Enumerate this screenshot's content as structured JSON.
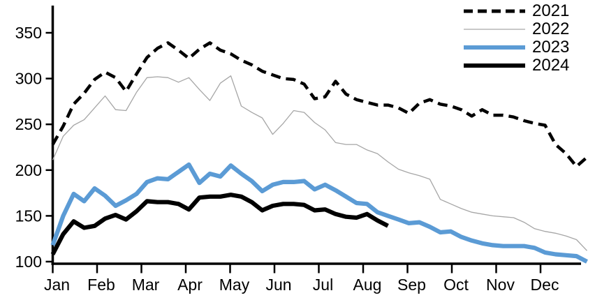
{
  "chart_data": {
    "type": "line",
    "title": "",
    "x_axis": {
      "tick_labels": [
        "Jan",
        "Feb",
        "Mar",
        "Apr",
        "May",
        "Jun",
        "Jul",
        "Aug",
        "Sep",
        "Oct",
        "Nov",
        "Dec"
      ],
      "unit": "weekly points across one year"
    },
    "y_axis": {
      "ticks": [
        100,
        150,
        200,
        250,
        300,
        350
      ],
      "range": [
        100,
        362
      ]
    },
    "legend": {
      "position": "top-right"
    },
    "series": [
      {
        "name": "2021",
        "color": "#000000",
        "dash": true,
        "thick": true,
        "values": [
          228,
          248,
          272,
          284,
          299,
          307,
          301,
          286,
          305,
          323,
          333,
          339,
          331,
          322,
          332,
          339,
          331,
          327,
          320,
          315,
          308,
          304,
          300,
          299,
          294,
          278,
          280,
          297,
          283,
          277,
          274,
          271,
          271,
          268,
          262,
          273,
          277,
          272,
          270,
          266,
          259,
          266,
          260,
          260,
          258,
          254,
          251,
          249,
          228,
          218,
          204,
          214
        ]
      },
      {
        "name": "2022",
        "color": "#a6a6a6",
        "dash": false,
        "thick": false,
        "values": [
          211,
          237,
          249,
          255,
          268,
          281,
          266,
          265,
          285,
          301,
          302,
          301,
          296,
          301,
          288,
          276,
          295,
          303,
          270,
          263,
          257,
          239,
          251,
          265,
          263,
          252,
          244,
          230,
          228,
          228,
          222,
          218,
          209,
          201,
          197,
          194,
          190,
          168,
          163,
          158,
          154,
          152,
          150,
          149,
          148,
          143,
          136,
          133,
          131,
          128,
          124,
          112
        ]
      },
      {
        "name": "2023",
        "color": "#5b9bd5",
        "dash": false,
        "thick": true,
        "values": [
          118,
          150,
          174,
          166,
          180,
          172,
          161,
          167,
          174,
          187,
          191,
          190,
          198,
          206,
          186,
          196,
          193,
          205,
          196,
          188,
          177,
          184,
          187,
          187,
          188,
          179,
          184,
          178,
          171,
          164,
          163,
          154,
          150,
          146,
          142,
          143,
          138,
          132,
          133,
          127,
          123,
          120,
          118,
          117,
          117,
          117,
          115,
          110,
          108,
          107,
          106,
          100
        ]
      },
      {
        "name": "2024",
        "color": "#000000",
        "dash": false,
        "thick": true,
        "values": [
          108,
          130,
          144,
          137,
          139,
          147,
          151,
          146,
          155,
          166,
          165,
          165,
          163,
          157,
          170,
          171,
          171,
          173,
          171,
          165,
          156,
          161,
          163,
          163,
          162,
          156,
          157,
          152,
          149,
          148,
          152,
          145,
          139
        ]
      }
    ]
  }
}
